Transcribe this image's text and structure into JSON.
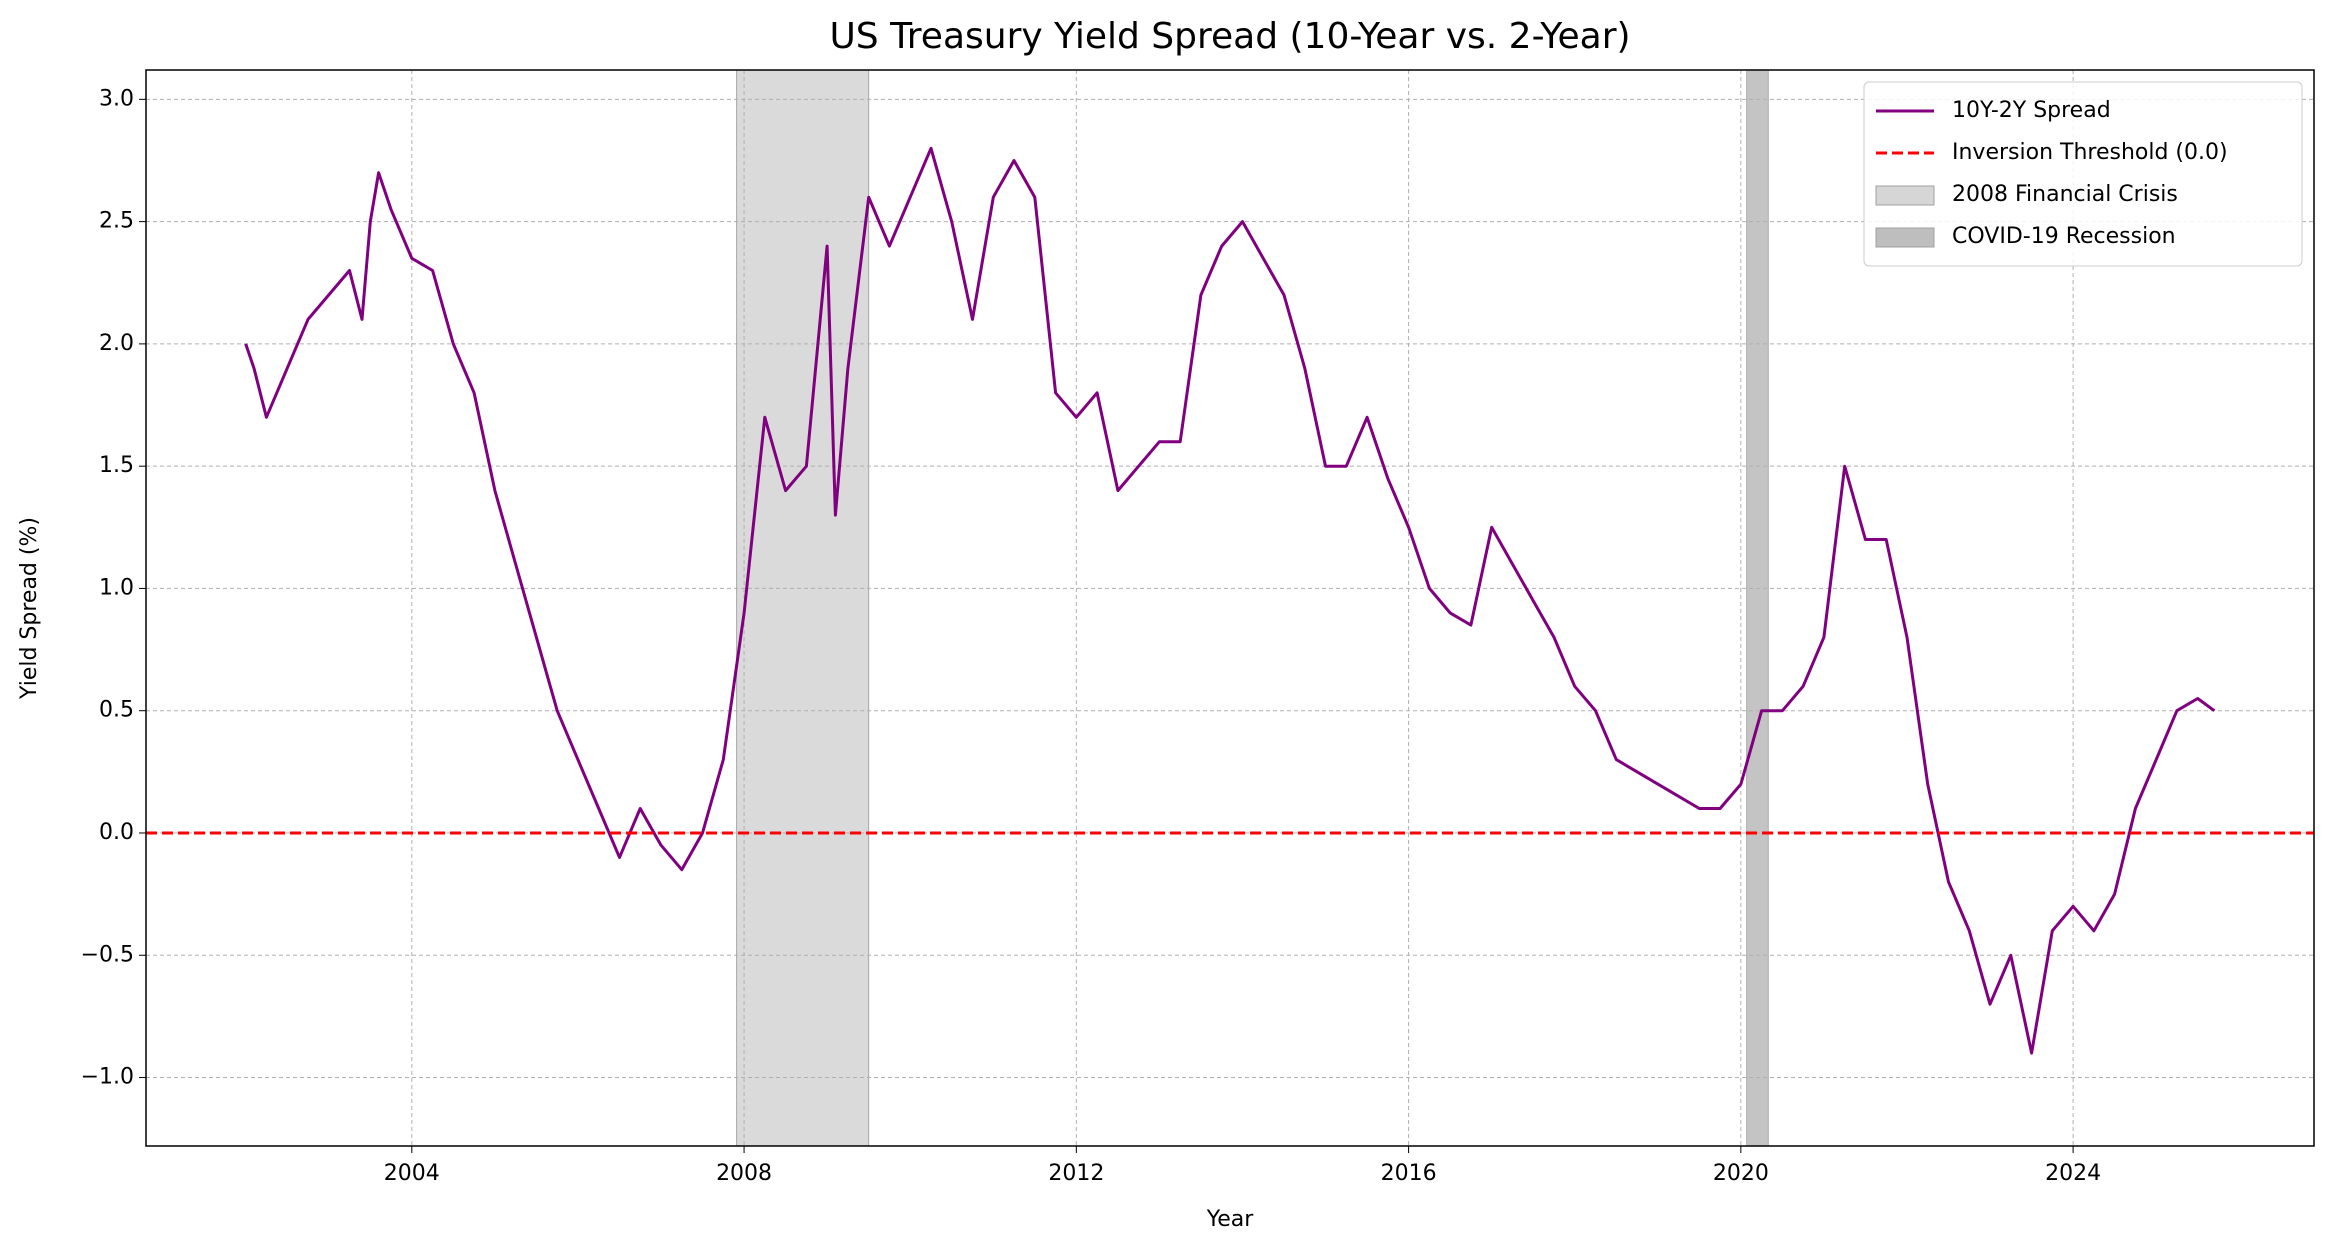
{
  "chart_data": {
    "type": "line",
    "title": "US Treasury Yield Spread (10-Year vs. 2-Year)",
    "xlabel": "Year",
    "ylabel": "Yield Spread (%)",
    "x": [
      2002.0,
      2002.1,
      2002.25,
      2002.5,
      2002.75,
      2003.0,
      2003.25,
      2003.4,
      2003.5,
      2003.6,
      2003.75,
      2004.0,
      2004.25,
      2004.5,
      2004.75,
      2005.0,
      2005.25,
      2005.5,
      2005.75,
      2006.0,
      2006.25,
      2006.5,
      2006.75,
      2007.0,
      2007.25,
      2007.5,
      2007.75,
      2008.0,
      2008.25,
      2008.5,
      2008.75,
      2009.0,
      2009.1,
      2009.25,
      2009.5,
      2009.75,
      2010.0,
      2010.25,
      2010.5,
      2010.75,
      2011.0,
      2011.25,
      2011.5,
      2011.75,
      2012.0,
      2012.25,
      2012.5,
      2012.75,
      2013.0,
      2013.25,
      2013.5,
      2013.75,
      2014.0,
      2014.25,
      2014.5,
      2014.75,
      2015.0,
      2015.25,
      2015.5,
      2015.75,
      2016.0,
      2016.25,
      2016.5,
      2016.75,
      2017.0,
      2017.25,
      2017.5,
      2017.75,
      2018.0,
      2018.25,
      2018.5,
      2018.75,
      2019.0,
      2019.25,
      2019.5,
      2019.75,
      2020.0,
      2020.25,
      2020.5,
      2020.75,
      2021.0,
      2021.25,
      2021.5,
      2021.75,
      2022.0,
      2022.25,
      2022.5,
      2022.75,
      2023.0,
      2023.25,
      2023.5,
      2023.75,
      2024.0,
      2024.25,
      2024.5,
      2024.75,
      2025.0,
      2025.25,
      2025.5,
      2025.7
    ],
    "series": [
      {
        "name": "10Y-2Y Spread",
        "color": "#800080",
        "values": [
          2.0,
          1.9,
          1.7,
          1.9,
          2.1,
          2.2,
          2.3,
          2.1,
          2.5,
          2.7,
          2.55,
          2.35,
          2.3,
          2.0,
          1.8,
          1.4,
          1.1,
          0.8,
          0.5,
          0.3,
          0.1,
          -0.1,
          0.1,
          -0.05,
          -0.15,
          0.0,
          0.3,
          0.9,
          1.7,
          1.4,
          1.5,
          2.4,
          1.3,
          1.9,
          2.6,
          2.4,
          2.6,
          2.8,
          2.5,
          2.1,
          2.6,
          2.75,
          2.6,
          1.8,
          1.7,
          1.8,
          1.4,
          1.5,
          1.6,
          1.6,
          2.2,
          2.4,
          2.5,
          2.35,
          2.2,
          1.9,
          1.5,
          1.5,
          1.7,
          1.45,
          1.25,
          1.0,
          0.9,
          0.85,
          1.25,
          1.1,
          0.95,
          0.8,
          0.6,
          0.5,
          0.3,
          0.25,
          0.2,
          0.15,
          0.1,
          0.1,
          0.2,
          0.5,
          0.5,
          0.6,
          0.8,
          1.5,
          1.2,
          1.2,
          0.8,
          0.2,
          -0.2,
          -0.4,
          -0.7,
          -0.5,
          -0.9,
          -0.4,
          -0.3,
          -0.4,
          -0.25,
          0.1,
          0.3,
          0.5,
          0.55,
          0.5
        ]
      }
    ],
    "hline": {
      "name": "Inversion Threshold (0.0)",
      "value": 0,
      "color": "#ff0000"
    },
    "spans": [
      {
        "name": "2008 Financial Crisis",
        "start": 2007.91,
        "end": 2009.5,
        "color": "#d6d6d6"
      },
      {
        "name": "COVID-19 Recession",
        "start": 2020.07,
        "end": 2020.33,
        "color": "#bebebe"
      }
    ],
    "xlim": [
      2000.8,
      2026.9
    ],
    "ylim": [
      -1.28,
      3.12
    ],
    "xticks": [
      2004,
      2008,
      2012,
      2016,
      2020,
      2024
    ],
    "yticks": [
      {
        "value": 3,
        "label": "3.0"
      },
      2.5,
      {
        "value": 2,
        "label": "2.0"
      },
      1.5,
      {
        "value": 1,
        "label": "1.0"
      },
      0.5,
      {
        "value": 0,
        "label": "0.0"
      },
      {
        "value": -0.5,
        "label": "−0.5"
      },
      {
        "value": -1,
        "label": "−1.0"
      }
    ],
    "grid": true,
    "legend": "upper right"
  }
}
